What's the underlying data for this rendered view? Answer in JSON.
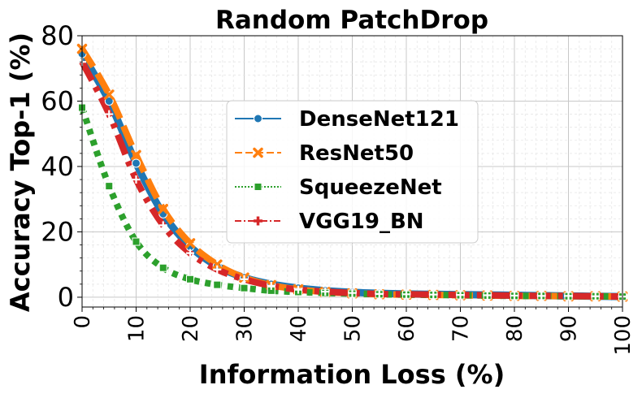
{
  "chart_data": {
    "type": "line",
    "title": "Random PatchDrop",
    "xlabel": "Information Loss (%)",
    "ylabel": "Accuracy Top-1 (%)",
    "xlim": [
      0,
      100
    ],
    "ylim": [
      -3,
      80
    ],
    "xticks": [
      0,
      10,
      20,
      30,
      40,
      50,
      60,
      70,
      80,
      90,
      100
    ],
    "yticks": [
      0,
      20,
      40,
      60,
      80
    ],
    "grid": true,
    "legend_position": "center",
    "x": [
      0,
      5,
      10,
      15,
      20,
      25,
      30,
      35,
      40,
      45,
      50,
      55,
      60,
      65,
      70,
      75,
      80,
      85,
      90,
      95,
      100
    ],
    "series": [
      {
        "name": "DenseNet121",
        "color": "#1f77b4",
        "marker": "circle",
        "linestyle": "solid",
        "values": [
          74.5,
          60,
          41,
          25.5,
          15.5,
          9.5,
          6,
          4,
          2.8,
          2,
          1.5,
          1.2,
          1,
          0.9,
          0.8,
          0.7,
          0.6,
          0.5,
          0.4,
          0.3,
          0.2
        ]
      },
      {
        "name": "ResNet50",
        "color": "#ff7f0e",
        "marker": "x",
        "linestyle": "dashed",
        "values": [
          76,
          62,
          43.5,
          27,
          16.5,
          10,
          6,
          3.7,
          2.4,
          1.6,
          1.2,
          0.9,
          0.8,
          0.7,
          0.6,
          0.5,
          0.4,
          0.4,
          0.3,
          0.3,
          0.2
        ]
      },
      {
        "name": "SqueezeNet",
        "color": "#2ca02c",
        "marker": "square",
        "linestyle": "dotted",
        "values": [
          58,
          34,
          17,
          9,
          5.5,
          3.8,
          2.8,
          2,
          1.6,
          1.3,
          1.1,
          0.9,
          0.8,
          0.7,
          0.6,
          0.5,
          0.4,
          0.4,
          0.3,
          0.3,
          0.2
        ]
      },
      {
        "name": "VGG19_BN",
        "color": "#d62728",
        "marker": "plus",
        "linestyle": "dashdot",
        "values": [
          72,
          56,
          36,
          22,
          13.5,
          8.5,
          5.5,
          3.5,
          2.3,
          1.7,
          1.3,
          1.0,
          0.9,
          0.8,
          0.7,
          0.6,
          0.5,
          0.4,
          0.4,
          0.3,
          0.2
        ]
      }
    ]
  }
}
